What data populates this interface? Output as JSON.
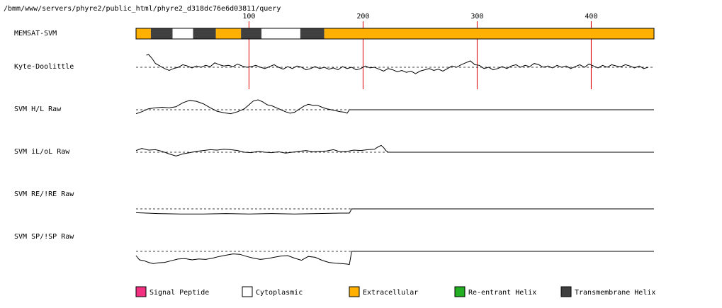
{
  "header": {
    "path": "/bmm/www/servers/phyre2/public_html/phyre2_d318dc76e6d03811/query"
  },
  "colors": {
    "signal_peptide": "#f2307f",
    "cytoplasmic": "#ffffff",
    "extracellular": "#ffb000",
    "reentrant_helix": "#22b022",
    "transmembrane_helix": "#404040",
    "marker_line": "#e00000"
  },
  "chart_data": {
    "type": "line",
    "x_range": [
      1,
      455
    ],
    "ticks": [
      100,
      200,
      300,
      400
    ],
    "memsat": {
      "label": "MEMSAT-SVM",
      "segments": [
        {
          "start": 1,
          "end": 14,
          "class": "extracellular"
        },
        {
          "start": 14,
          "end": 33,
          "class": "transmembrane_helix"
        },
        {
          "start": 33,
          "end": 51,
          "class": "cytoplasmic"
        },
        {
          "start": 51,
          "end": 71,
          "class": "transmembrane_helix"
        },
        {
          "start": 71,
          "end": 93,
          "class": "extracellular"
        },
        {
          "start": 93,
          "end": 111,
          "class": "transmembrane_helix"
        },
        {
          "start": 111,
          "end": 145,
          "class": "cytoplasmic"
        },
        {
          "start": 145,
          "end": 166,
          "class": "transmembrane_helix"
        },
        {
          "start": 166,
          "end": 455,
          "class": "extracellular"
        }
      ]
    },
    "series": [
      {
        "name": "Kyte-Doolittle",
        "x": [
          10,
          12,
          15,
          18,
          22,
          26,
          30,
          34,
          38,
          42,
          46,
          50,
          54,
          58,
          62,
          66,
          70,
          74,
          78,
          82,
          86,
          90,
          94,
          98,
          102,
          106,
          110,
          114,
          118,
          122,
          126,
          130,
          134,
          138,
          142,
          146,
          150,
          154,
          158,
          162,
          166,
          170,
          174,
          178,
          182,
          186,
          190,
          194,
          198,
          202,
          206,
          210,
          214,
          218,
          222,
          226,
          230,
          234,
          238,
          242,
          246,
          250,
          254,
          258,
          262,
          266,
          270,
          274,
          278,
          282,
          286,
          290,
          294,
          298,
          302,
          306,
          310,
          314,
          318,
          322,
          326,
          330,
          334,
          338,
          342,
          346,
          350,
          354,
          358,
          362,
          366,
          370,
          374,
          378,
          382,
          386,
          390,
          394,
          398,
          402,
          406,
          410,
          414,
          418,
          422,
          426,
          430,
          434,
          438,
          442,
          446,
          450
        ],
        "y": [
          0.95,
          1.0,
          0.7,
          0.3,
          0.1,
          -0.1,
          -0.25,
          -0.1,
          0.0,
          0.2,
          0.1,
          -0.05,
          0.1,
          0.0,
          0.15,
          0.05,
          0.35,
          0.2,
          0.1,
          0.15,
          0.05,
          0.25,
          0.1,
          0.0,
          0.05,
          0.15,
          0.0,
          -0.1,
          0.05,
          0.2,
          0.0,
          -0.15,
          0.05,
          -0.1,
          0.1,
          0.0,
          -0.2,
          -0.1,
          0.05,
          -0.1,
          0.0,
          -0.15,
          -0.05,
          -0.2,
          0.05,
          -0.1,
          0.0,
          -0.2,
          -0.1,
          0.1,
          -0.05,
          0.0,
          -0.15,
          -0.3,
          -0.1,
          -0.2,
          -0.35,
          -0.25,
          -0.4,
          -0.3,
          -0.5,
          -0.3,
          -0.2,
          -0.1,
          -0.25,
          -0.15,
          -0.3,
          -0.1,
          0.1,
          0.0,
          0.2,
          0.35,
          0.5,
          0.2,
          0.15,
          -0.1,
          0.0,
          -0.2,
          -0.1,
          0.05,
          -0.1,
          0.1,
          0.2,
          0.0,
          0.15,
          0.05,
          0.3,
          0.2,
          0.0,
          0.1,
          -0.05,
          0.15,
          0.0,
          0.1,
          -0.1,
          0.05,
          0.2,
          0.0,
          0.25,
          0.1,
          -0.05,
          0.15,
          0.0,
          0.2,
          0.1,
          0.05,
          0.2,
          0.1,
          -0.05,
          0.1,
          -0.1,
          0.0
        ]
      },
      {
        "name": "SVM H/L Raw",
        "x": [
          1,
          6,
          12,
          18,
          24,
          30,
          36,
          42,
          48,
          54,
          60,
          66,
          72,
          78,
          84,
          90,
          96,
          100,
          104,
          108,
          112,
          116,
          120,
          124,
          128,
          132,
          136,
          140,
          144,
          148,
          152,
          156,
          160,
          164,
          168,
          172,
          176,
          180,
          184,
          186,
          188,
          190,
          455
        ],
        "y": [
          -0.4,
          -0.2,
          0.1,
          0.2,
          0.25,
          0.2,
          0.3,
          0.7,
          0.95,
          0.85,
          0.6,
          0.2,
          -0.15,
          -0.3,
          -0.4,
          -0.2,
          0.1,
          0.5,
          0.9,
          1.0,
          0.8,
          0.5,
          0.4,
          0.2,
          0.0,
          -0.2,
          -0.35,
          -0.25,
          0.05,
          0.35,
          0.55,
          0.45,
          0.45,
          0.25,
          0.1,
          0.0,
          -0.1,
          -0.2,
          -0.25,
          -0.35,
          0.0,
          0.0,
          0.0
        ]
      },
      {
        "name": "SVM iL/oL Raw",
        "x": [
          1,
          6,
          12,
          18,
          24,
          30,
          36,
          42,
          48,
          54,
          60,
          66,
          72,
          78,
          84,
          90,
          96,
          102,
          108,
          114,
          120,
          126,
          132,
          138,
          144,
          150,
          156,
          162,
          168,
          174,
          180,
          186,
          192,
          198,
          204,
          210,
          214,
          216,
          218,
          220,
          222,
          455
        ],
        "y": [
          0.2,
          0.45,
          0.25,
          0.3,
          0.1,
          -0.2,
          -0.45,
          -0.2,
          -0.05,
          0.1,
          0.2,
          0.3,
          0.25,
          0.35,
          0.3,
          0.2,
          0.0,
          -0.05,
          0.1,
          0.0,
          -0.05,
          0.05,
          -0.1,
          0.0,
          0.1,
          0.2,
          0.05,
          0.1,
          0.15,
          0.3,
          0.05,
          0.1,
          0.25,
          0.2,
          0.3,
          0.35,
          0.7,
          0.8,
          0.55,
          0.2,
          0.0,
          0.0
        ]
      },
      {
        "name": "SVM RE/!RE Raw",
        "x": [
          1,
          20,
          40,
          60,
          80,
          100,
          120,
          140,
          160,
          180,
          188,
          190,
          455
        ],
        "y": [
          -0.45,
          -0.55,
          -0.6,
          -0.6,
          -0.55,
          -0.6,
          -0.55,
          -0.6,
          -0.55,
          -0.5,
          -0.5,
          0.0,
          0.0
        ]
      },
      {
        "name": "SVM SP/!SP Raw",
        "x": [
          1,
          4,
          8,
          12,
          16,
          20,
          26,
          32,
          38,
          44,
          50,
          56,
          62,
          68,
          74,
          80,
          86,
          92,
          98,
          104,
          110,
          116,
          122,
          128,
          134,
          140,
          146,
          152,
          158,
          164,
          170,
          176,
          182,
          186,
          188,
          190,
          455
        ],
        "y": [
          -0.5,
          -1.0,
          -1.1,
          -1.3,
          -1.45,
          -1.35,
          -1.3,
          -1.1,
          -0.9,
          -0.85,
          -1.0,
          -0.9,
          -0.95,
          -0.8,
          -0.6,
          -0.45,
          -0.3,
          -0.35,
          -0.6,
          -0.8,
          -0.95,
          -0.85,
          -0.7,
          -0.55,
          -0.5,
          -0.8,
          -1.05,
          -0.6,
          -0.7,
          -1.05,
          -1.3,
          -1.4,
          -1.45,
          -1.5,
          -1.55,
          0.0,
          0.0
        ]
      }
    ],
    "legend": [
      {
        "label": "Signal Peptide",
        "class": "signal_peptide"
      },
      {
        "label": "Cytoplasmic",
        "class": "cytoplasmic"
      },
      {
        "label": "Extracellular",
        "class": "extracellular"
      },
      {
        "label": "Re-entrant Helix",
        "class": "reentrant_helix"
      },
      {
        "label": "Transmembrane Helix",
        "class": "transmembrane_helix"
      }
    ]
  }
}
